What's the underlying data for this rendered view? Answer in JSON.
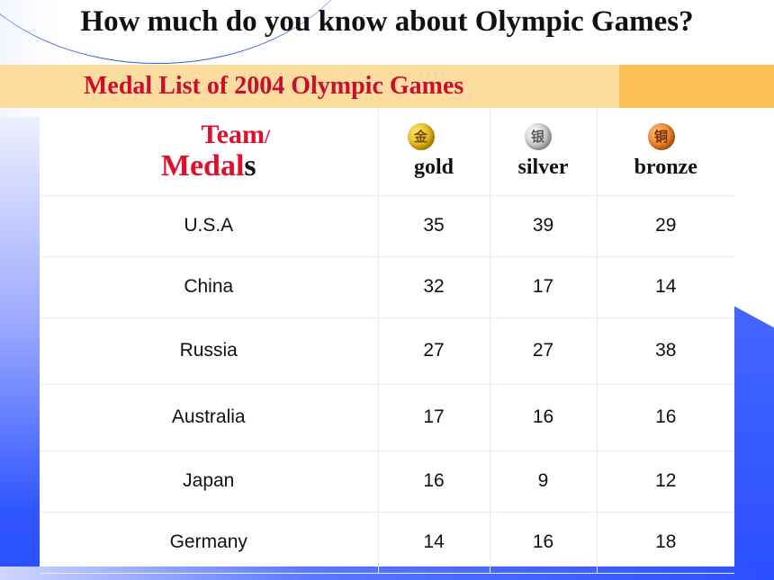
{
  "title": "How much do you know about Olympic Games?",
  "subtitle": "Medal List of 2004 Olympic Games",
  "header": {
    "team_line1": "Team",
    "team_slash": "/",
    "team_line2_main": "Medal",
    "team_line2_s": "s",
    "gold": {
      "label": "gold",
      "glyph": "金",
      "icon": "gold-medal-icon",
      "color": "#d8a400"
    },
    "silver": {
      "label": "silver",
      "glyph": "银",
      "icon": "silver-medal-icon",
      "color": "#b5b5b5"
    },
    "bronze": {
      "label": "bronze",
      "glyph": "铜",
      "icon": "bronze-medal-icon",
      "color": "#e06b10"
    }
  },
  "rows": [
    {
      "team": "U.S.A",
      "gold": "35",
      "silver": "39",
      "bronze": "29"
    },
    {
      "team": "China",
      "gold": "32",
      "silver": "17",
      "bronze": "14"
    },
    {
      "team": "Russia",
      "gold": "27",
      "silver": "27",
      "bronze": "38"
    },
    {
      "team": "Australia",
      "gold": "17",
      "silver": "16",
      "bronze": "16"
    },
    {
      "team": "Japan",
      "gold": "16",
      "silver": "9",
      "bronze": "12"
    },
    {
      "team": "Germany",
      "gold": "14",
      "silver": "16",
      "bronze": "18"
    }
  ],
  "colors": {
    "title_red": "#c8102e",
    "band": "#fddca0",
    "band_accent": "#fbbf55",
    "deco_blue": "#2a4fff"
  }
}
